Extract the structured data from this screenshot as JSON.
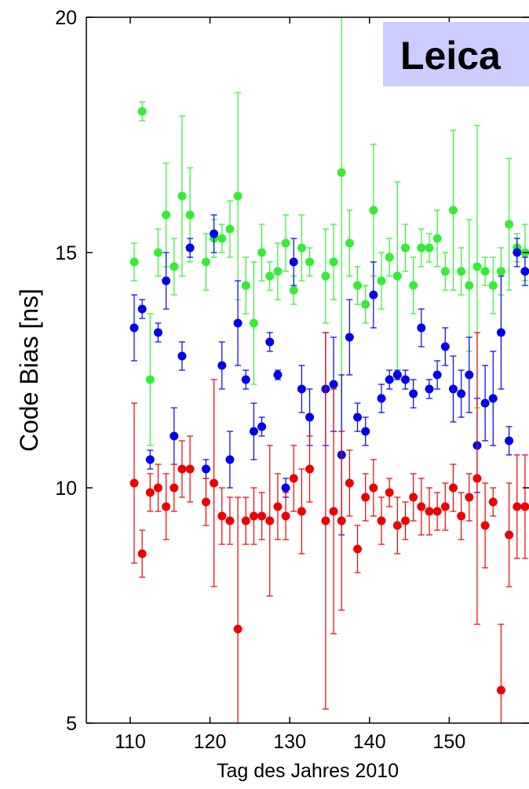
{
  "chart_data": {
    "type": "scatter",
    "title": "",
    "annotation": "Leica",
    "xlabel": "Tag des Jahres 2010",
    "ylabel": "Code Bias [ns]",
    "xlim": [
      104.5,
      160
    ],
    "ylim": [
      5,
      20
    ],
    "xticks": [
      110,
      120,
      130,
      140,
      150
    ],
    "yticks": [
      5,
      10,
      15,
      20
    ],
    "colors": {
      "annotation_bg": "#ccccff",
      "axis": "#000000"
    },
    "x": [
      110.5,
      111.5,
      112.5,
      113.5,
      114.5,
      115.5,
      116.5,
      117.5,
      119.5,
      120.5,
      121.5,
      122.5,
      123.5,
      124.5,
      125.5,
      126.5,
      127.5,
      128.5,
      129.5,
      130.5,
      131.5,
      132.5,
      134.5,
      135.5,
      136.5,
      137.5,
      138.5,
      139.5,
      140.5,
      141.5,
      142.5,
      143.5,
      144.5,
      145.5,
      146.5,
      147.5,
      148.5,
      149.5,
      150.5,
      151.5,
      152.5,
      153.5,
      154.5,
      155.5,
      156.5,
      157.5,
      158.5,
      159.5
    ],
    "series": [
      {
        "color": "#33ee33",
        "y": [
          14.8,
          18.0,
          12.3,
          15.0,
          15.8,
          14.7,
          16.2,
          15.8,
          14.8,
          15.3,
          15.3,
          15.5,
          16.2,
          14.3,
          13.5,
          15.0,
          14.5,
          14.6,
          15.2,
          14.2,
          15.1,
          14.8,
          14.5,
          14.8,
          16.7,
          15.2,
          14.3,
          13.9,
          15.9,
          14.4,
          14.9,
          14.5,
          15.1,
          14.3,
          15.1,
          15.1,
          15.3,
          14.6,
          15.9,
          14.6,
          14.3,
          14.7,
          14.6,
          14.3,
          14.6,
          15.6,
          15.1,
          15.0
        ],
        "err": [
          0.4,
          0.2,
          1.4,
          0.5,
          1.1,
          0.6,
          1.7,
          1.0,
          0.6,
          0.4,
          0.3,
          0.6,
          2.2,
          0.6,
          1.3,
          0.6,
          0.3,
          0.6,
          0.6,
          0.3,
          0.7,
          0.3,
          1.0,
          0.8,
          5.5,
          0.7,
          0.4,
          0.4,
          1.4,
          0.6,
          0.4,
          2.0,
          0.5,
          0.6,
          0.4,
          0.3,
          0.6,
          0.4,
          1.7,
          0.5,
          1.4,
          3.0,
          0.3,
          0.6,
          0.5,
          1.4,
          0.3,
          0.6
        ]
      },
      {
        "color": "#0000ee",
        "y": [
          13.4,
          13.8,
          10.6,
          13.3,
          14.4,
          11.1,
          12.8,
          15.1,
          10.4,
          15.4,
          12.6,
          10.6,
          13.5,
          12.3,
          11.2,
          11.3,
          13.1,
          12.4,
          10.0,
          14.8,
          12.1,
          11.5,
          12.1,
          12.2,
          10.7,
          13.2,
          11.5,
          11.2,
          14.1,
          11.9,
          12.3,
          12.4,
          12.3,
          12.0,
          13.4,
          12.1,
          12.4,
          13.0,
          12.1,
          12.0,
          12.4,
          10.9,
          11.8,
          11.9,
          13.3,
          11.0,
          15.0,
          14.6
        ],
        "err": [
          0.7,
          0.2,
          0.2,
          0.2,
          0.6,
          0.6,
          0.3,
          0.2,
          0.2,
          0.4,
          0.5,
          0.6,
          0.9,
          0.2,
          0.6,
          0.2,
          0.2,
          0.1,
          0.2,
          0.5,
          0.5,
          0.6,
          1.2,
          1.0,
          1.7,
          0.8,
          0.3,
          0.3,
          0.7,
          0.3,
          0.2,
          0.1,
          0.2,
          0.3,
          0.4,
          0.2,
          0.3,
          0.4,
          0.7,
          0.5,
          0.8,
          1.0,
          0.8,
          1.0,
          1.2,
          0.3,
          0.3,
          0.3
        ]
      },
      {
        "color": "#ee0000",
        "y": [
          10.1,
          8.6,
          9.9,
          10.0,
          9.6,
          10.0,
          10.4,
          10.4,
          9.7,
          10.1,
          9.4,
          9.3,
          7.0,
          9.3,
          9.4,
          9.4,
          9.3,
          9.6,
          9.4,
          10.2,
          9.5,
          10.4,
          9.3,
          9.5,
          9.3,
          10.1,
          8.7,
          9.8,
          10.0,
          9.3,
          9.9,
          9.2,
          9.3,
          9.8,
          9.6,
          9.5,
          9.5,
          9.6,
          10.0,
          9.4,
          9.8,
          10.2,
          9.2,
          9.7,
          5.7,
          9.0,
          9.6,
          9.6
        ],
        "err": [
          1.7,
          0.5,
          0.4,
          0.5,
          0.7,
          0.5,
          0.6,
          0.7,
          0.5,
          2.2,
          0.6,
          0.5,
          2.8,
          0.5,
          0.6,
          0.5,
          1.6,
          0.7,
          0.5,
          0.7,
          0.9,
          0.7,
          4.0,
          2.6,
          1.9,
          0.7,
          0.5,
          0.5,
          0.6,
          0.5,
          0.3,
          0.6,
          0.4,
          0.5,
          0.6,
          0.5,
          0.4,
          0.5,
          0.5,
          0.5,
          0.5,
          3.1,
          0.9,
          0.3,
          1.4,
          1.1,
          1.1,
          1.1
        ]
      }
    ]
  }
}
